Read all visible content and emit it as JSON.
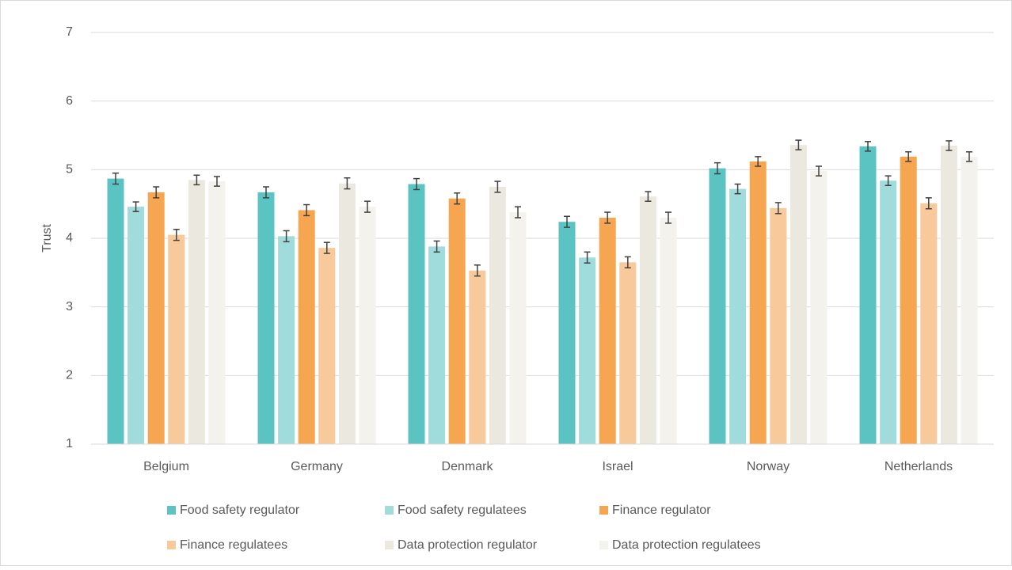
{
  "chart_data": {
    "type": "bar",
    "y_label": "Trust",
    "categories": [
      "Belgium",
      "Germany",
      "Denmark",
      "Israel",
      "Norway",
      "Netherlands"
    ],
    "series": [
      {
        "name": "Food safety regulator",
        "color": "#5bc4c2",
        "values": [
          4.87,
          4.67,
          4.79,
          4.24,
          5.02,
          5.34
        ],
        "errors": [
          0.08,
          0.08,
          0.08,
          0.08,
          0.08,
          0.07
        ]
      },
      {
        "name": "Food safety regulatees",
        "color": "#a0dcdb",
        "values": [
          4.46,
          4.03,
          3.88,
          3.72,
          4.72,
          4.84
        ],
        "errors": [
          0.07,
          0.08,
          0.08,
          0.08,
          0.07,
          0.07
        ]
      },
      {
        "name": "Finance regulator",
        "color": "#f6a550",
        "values": [
          4.67,
          4.41,
          4.58,
          4.3,
          5.12,
          5.19
        ],
        "errors": [
          0.08,
          0.08,
          0.08,
          0.08,
          0.07,
          0.07
        ]
      },
      {
        "name": "Finance regulatees",
        "color": "#f8c99a",
        "values": [
          4.05,
          3.86,
          3.53,
          3.65,
          4.44,
          4.51
        ],
        "errors": [
          0.08,
          0.08,
          0.08,
          0.08,
          0.08,
          0.08
        ]
      },
      {
        "name": "Data protection regulator",
        "color": "#ebe9df",
        "values": [
          4.85,
          4.8,
          4.75,
          4.61,
          5.36,
          5.35
        ],
        "errors": [
          0.07,
          0.08,
          0.08,
          0.07,
          0.07,
          0.07
        ]
      },
      {
        "name": "Data protection regulatees",
        "color": "#f3f2ec",
        "values": [
          4.83,
          4.46,
          4.38,
          4.3,
          4.98,
          5.19
        ],
        "errors": [
          0.07,
          0.08,
          0.08,
          0.08,
          0.07,
          0.07
        ]
      }
    ],
    "ylim": [
      1,
      7
    ],
    "yticks": [
      1,
      2,
      3,
      4,
      5,
      6,
      7
    ],
    "grid": true,
    "legend": "bottom"
  }
}
